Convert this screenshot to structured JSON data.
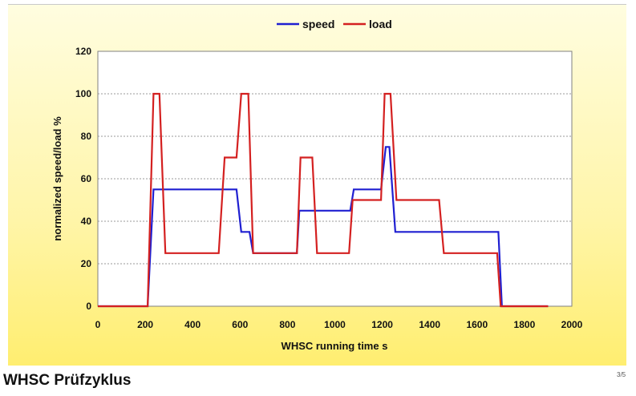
{
  "page": {
    "title": "WHSC Prüfzyklus",
    "page_number": "3/5"
  },
  "colors": {
    "speed": "#1f1fd1",
    "load": "#d42020",
    "grid": "#9a9a9a"
  },
  "chart_data": {
    "type": "line",
    "xlabel": "WHSC running time s",
    "ylabel": "normalized speed/load %",
    "xlim": [
      0,
      2000
    ],
    "ylim": [
      0,
      120
    ],
    "xticks": [
      0,
      200,
      400,
      600,
      800,
      1000,
      1200,
      1400,
      1600,
      1800,
      2000
    ],
    "yticks": [
      0,
      20,
      40,
      60,
      80,
      100,
      120
    ],
    "grid": "horizontal dotted",
    "legend": "top-center",
    "series": [
      {
        "name": "speed",
        "x": [
          0,
          210,
          235,
          585,
          605,
          640,
          655,
          840,
          850,
          1065,
          1080,
          1195,
          1215,
          1230,
          1255,
          1690,
          1705,
          1900
        ],
        "y": [
          0,
          0,
          55,
          55,
          35,
          35,
          25,
          25,
          45,
          45,
          55,
          55,
          75,
          75,
          35,
          35,
          0,
          0
        ]
      },
      {
        "name": "load",
        "x": [
          0,
          210,
          235,
          260,
          285,
          510,
          535,
          585,
          605,
          635,
          655,
          840,
          855,
          905,
          925,
          1060,
          1075,
          1195,
          1210,
          1235,
          1260,
          1440,
          1460,
          1685,
          1700,
          1900
        ],
        "y": [
          0,
          0,
          100,
          100,
          25,
          25,
          70,
          70,
          100,
          100,
          25,
          25,
          70,
          70,
          25,
          25,
          50,
          50,
          100,
          100,
          50,
          50,
          25,
          25,
          0,
          0
        ]
      }
    ]
  }
}
